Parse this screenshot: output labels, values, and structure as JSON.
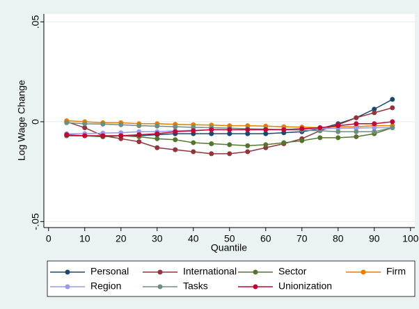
{
  "chart_data": {
    "type": "line",
    "xlabel": "Quantile",
    "ylabel": "Log Wage Change",
    "x": [
      5,
      10,
      15,
      20,
      25,
      30,
      35,
      40,
      45,
      50,
      55,
      60,
      65,
      70,
      75,
      80,
      85,
      90,
      95
    ],
    "series": [
      {
        "name": "Personal",
        "color": "#1a476f",
        "values": [
          -0.007,
          -0.007,
          -0.0075,
          -0.007,
          -0.007,
          -0.0065,
          -0.006,
          -0.006,
          -0.006,
          -0.006,
          -0.006,
          -0.006,
          -0.0055,
          -0.005,
          -0.0035,
          -0.001,
          0.002,
          0.0063,
          0.0112
        ]
      },
      {
        "name": "International",
        "color": "#90353b",
        "values": [
          0,
          -0.003,
          -0.007,
          -0.0085,
          -0.01,
          -0.013,
          -0.014,
          -0.015,
          -0.016,
          -0.016,
          -0.015,
          -0.013,
          -0.011,
          -0.0085,
          -0.0045,
          -0.0015,
          0.002,
          0.0045,
          0.007
        ]
      },
      {
        "name": "Sector",
        "color": "#55752f",
        "values": [
          -0.007,
          -0.007,
          -0.0075,
          -0.007,
          -0.0075,
          -0.0085,
          -0.009,
          -0.0105,
          -0.011,
          -0.0115,
          -0.012,
          -0.0115,
          -0.0105,
          -0.0095,
          -0.008,
          -0.008,
          -0.0075,
          -0.006,
          -0.003
        ]
      },
      {
        "name": "Firm",
        "color": "#e37e00",
        "values": [
          0.0005,
          0,
          -0.0005,
          -0.0005,
          -0.001,
          -0.001,
          -0.0013,
          -0.0015,
          -0.0017,
          -0.002,
          -0.002,
          -0.0022,
          -0.0025,
          -0.0027,
          -0.003,
          -0.0025,
          -0.0025,
          -0.002,
          -0.002
        ]
      },
      {
        "name": "Region",
        "color": "#9a9ae6",
        "values": [
          -0.006,
          -0.006,
          -0.0057,
          -0.0055,
          -0.005,
          -0.005,
          -0.0045,
          -0.0043,
          -0.004,
          -0.004,
          -0.004,
          -0.004,
          -0.0038,
          -0.0036,
          -0.0035,
          -0.0033,
          -0.0032,
          -0.003,
          -0.003
        ]
      },
      {
        "name": "Tasks",
        "color": "#6e8e84",
        "values": [
          -0.0005,
          -0.001,
          -0.0012,
          -0.0015,
          -0.002,
          -0.0022,
          -0.0025,
          -0.0028,
          -0.003,
          -0.0032,
          -0.0035,
          -0.0037,
          -0.004,
          -0.0042,
          -0.0045,
          -0.005,
          -0.005,
          -0.005,
          -0.003
        ]
      },
      {
        "name": "Unionization",
        "color": "#c10534",
        "values": [
          -0.0065,
          -0.007,
          -0.007,
          -0.007,
          -0.0065,
          -0.006,
          -0.005,
          -0.0045,
          -0.004,
          -0.004,
          -0.004,
          -0.004,
          -0.004,
          -0.0035,
          -0.003,
          -0.002,
          -0.001,
          -0.001,
          0
        ]
      }
    ],
    "xlim": [
      -1.3,
      101.2
    ],
    "ylim": [
      -0.053,
      0.054
    ],
    "xticks": [
      0,
      10,
      20,
      30,
      40,
      50,
      60,
      70,
      80,
      90,
      100
    ],
    "yticks": [
      {
        "value": -0.05,
        "label": "-.05"
      },
      0,
      {
        "value": 0.05,
        "label": ".05"
      }
    ],
    "grid": true,
    "legend": "bottom"
  }
}
